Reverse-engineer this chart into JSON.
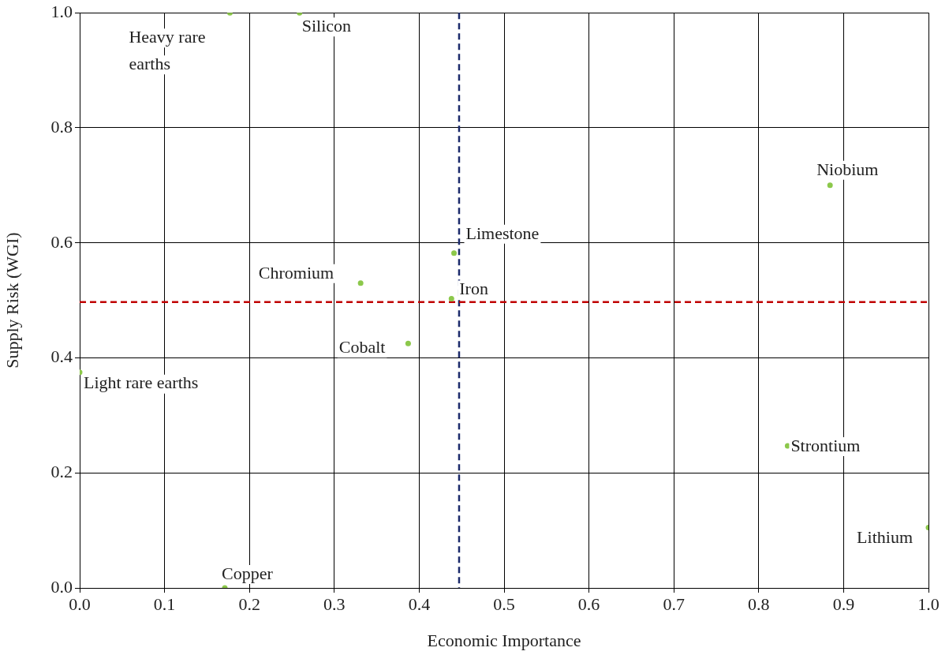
{
  "chart_data": {
    "type": "scatter",
    "xlabel": "Economic Importance",
    "ylabel": "Supply Risk (WGI)",
    "series": [
      {
        "color": "#8cc84b",
        "x": [
          0.177,
          0.259,
          0.884,
          0.441,
          0.331,
          0.438,
          0.387,
          0.0,
          0.834,
          1.0,
          0.171
        ],
        "values": [
          1.0,
          1.0,
          0.7,
          0.582,
          0.53,
          0.503,
          0.425,
          0.375,
          0.247,
          0.105,
          0.0
        ]
      }
    ],
    "annotations": [
      {
        "text": "Heavy rare earths",
        "x": 0.177,
        "y": 1.0
      },
      {
        "text": "Silicon",
        "x": 0.259,
        "y": 1.0
      },
      {
        "text": "Niobium",
        "x": 0.884,
        "y": 0.7
      },
      {
        "text": "Limestone",
        "x": 0.441,
        "y": 0.582
      },
      {
        "text": "Chromium",
        "x": 0.331,
        "y": 0.53
      },
      {
        "text": "Iron",
        "x": 0.438,
        "y": 0.503
      },
      {
        "text": "Cobalt",
        "x": 0.387,
        "y": 0.425
      },
      {
        "text": "Light rare earths",
        "x": 0.0,
        "y": 0.375
      },
      {
        "text": "Strontium",
        "x": 0.834,
        "y": 0.247
      },
      {
        "text": "Lithium",
        "x": 1.0,
        "y": 0.105
      },
      {
        "text": "Copper",
        "x": 0.171,
        "y": 0.0
      }
    ],
    "ref_lines": [
      {
        "axis": "x",
        "value": 0.447,
        "color": "#1b2a6b",
        "line_style": "dashed"
      },
      {
        "axis": "y",
        "value": 0.497,
        "color": "#c00000",
        "line_style": "dashed"
      }
    ],
    "xlim": [
      0,
      1
    ],
    "ylim": [
      0,
      1
    ],
    "xticks": [
      {
        "value": 0,
        "label": "0.0"
      },
      0.1,
      0.2,
      0.3,
      0.4,
      0.5,
      0.6,
      0.7,
      0.8,
      0.9,
      {
        "value": 1,
        "label": "1.0"
      }
    ],
    "yticks": [
      {
        "value": 0,
        "label": "0.0"
      },
      0.2,
      0.4,
      0.6,
      0.8,
      {
        "value": 1,
        "label": "1.0"
      }
    ],
    "grid": true,
    "marker": "circle",
    "legend": false
  }
}
